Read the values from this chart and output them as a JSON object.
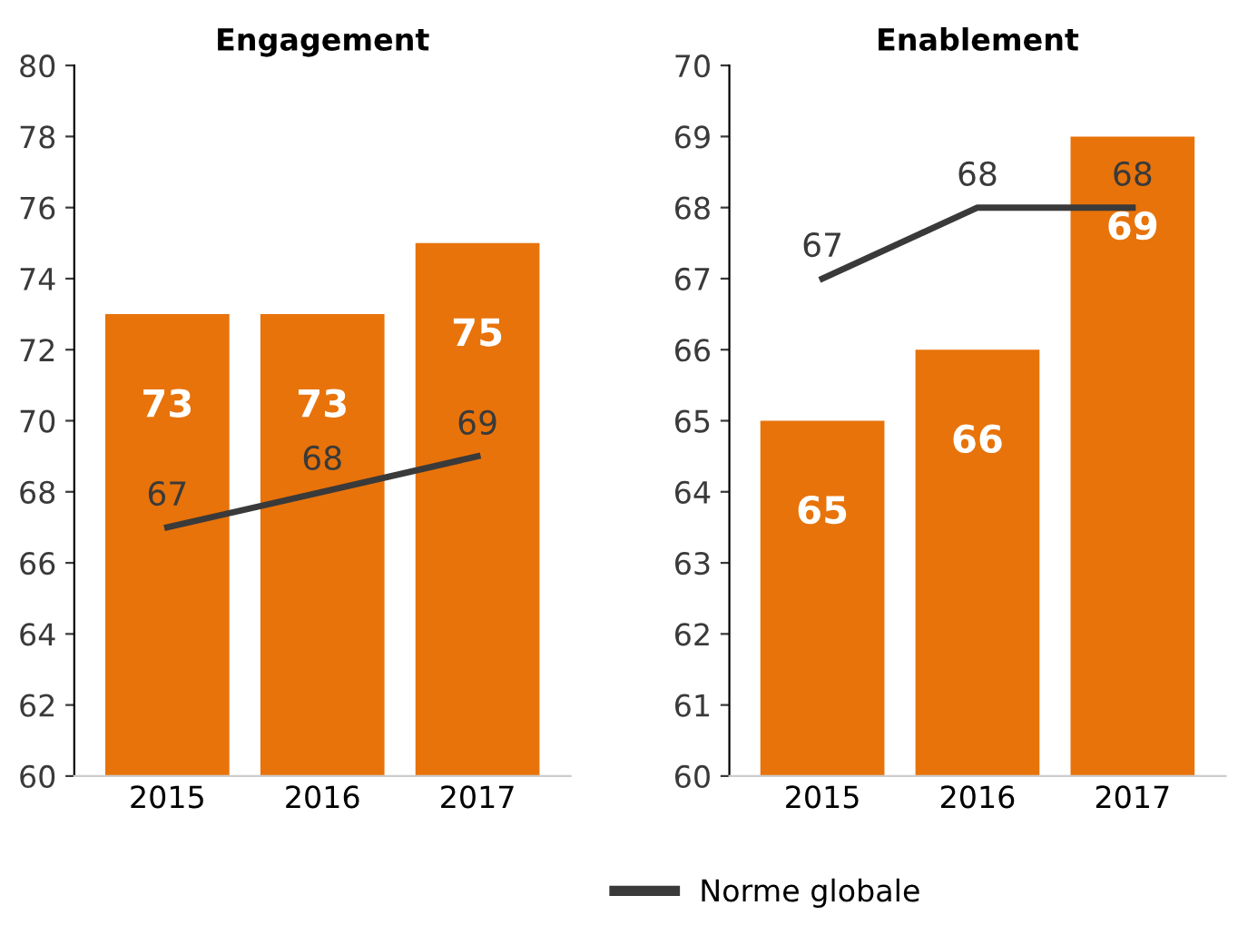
{
  "chart_data": [
    {
      "type": "bar",
      "title": "Engagement",
      "categories": [
        "2015",
        "2016",
        "2017"
      ],
      "ylim": [
        60,
        80
      ],
      "yticks": [
        60,
        62,
        64,
        66,
        68,
        70,
        72,
        74,
        76,
        78,
        80
      ],
      "grid": false,
      "legend": "bottom",
      "data_labels": true,
      "series": [
        {
          "color": "#e8730a",
          "values": [
            73,
            73,
            75
          ]
        },
        {
          "type": "line",
          "name": "Norme globale",
          "color": "#3a3a3a",
          "values": [
            67,
            68,
            69
          ]
        }
      ]
    },
    {
      "type": "bar",
      "title": "Enablement",
      "categories": [
        "2015",
        "2016",
        "2017"
      ],
      "ylim": [
        60,
        70
      ],
      "yticks": [
        60,
        61,
        62,
        63,
        64,
        65,
        66,
        67,
        68,
        69,
        70
      ],
      "grid": false,
      "legend": "bottom",
      "data_labels": true,
      "series": [
        {
          "color": "#e8730a",
          "values": [
            65,
            66,
            69
          ]
        },
        {
          "type": "line",
          "name": "Norme globale",
          "color": "#3a3a3a",
          "values": [
            67,
            68,
            68
          ]
        }
      ]
    }
  ]
}
